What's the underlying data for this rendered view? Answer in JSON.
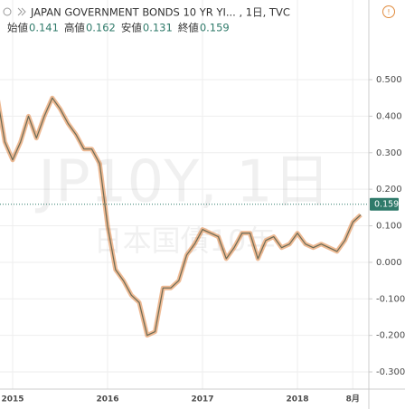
{
  "chart_data": {
    "type": "line",
    "title": "JAPAN GOVERNMENT BONDS 10 YR YI... , 1日, TVC",
    "watermark": "JP10Y, 1日",
    "watermark_subtitle": "日本国債10年",
    "ohlc": [
      {
        "label": "始値",
        "value": 0.141
      },
      {
        "label": "高値",
        "value": 0.162
      },
      {
        "label": "安値",
        "value": 0.131
      },
      {
        "label": "終値",
        "value": 0.159
      }
    ],
    "last_price": 0.159,
    "categories": [
      null,
      null,
      "2015",
      null,
      null,
      null,
      null,
      null,
      null,
      null,
      null,
      null,
      null,
      null,
      "2016",
      null,
      null,
      null,
      null,
      null,
      null,
      null,
      null,
      null,
      null,
      null,
      "2017",
      null,
      null,
      null,
      null,
      null,
      null,
      null,
      null,
      null,
      null,
      null,
      "2018",
      null,
      null,
      null,
      null,
      null,
      null,
      "8月",
      null
    ],
    "series": [
      {
        "name": "JP10Y",
        "color": "#e0823c",
        "values": [
          0.46,
          0.33,
          0.28,
          0.33,
          0.4,
          0.34,
          0.4,
          0.45,
          0.42,
          0.38,
          0.35,
          0.31,
          0.31,
          0.27,
          0.1,
          -0.02,
          -0.05,
          -0.09,
          -0.11,
          -0.2,
          -0.19,
          -0.07,
          -0.07,
          -0.05,
          0.02,
          0.05,
          0.09,
          0.08,
          0.07,
          0.01,
          0.04,
          0.08,
          0.08,
          0.01,
          0.06,
          0.07,
          0.04,
          0.05,
          0.08,
          0.05,
          0.04,
          0.05,
          0.04,
          0.03,
          0.06,
          0.11,
          0.13
        ]
      }
    ],
    "ylim": [
      -0.347,
      0.718
    ],
    "yticks": [
      {
        "value": -0.3,
        "label": "-0.300"
      },
      {
        "value": -0.2,
        "label": "-0.200"
      },
      {
        "value": -0.1,
        "label": "-0.100"
      },
      {
        "value": 0,
        "label": "0.000"
      },
      {
        "value": 0.1,
        "label": "0.100"
      },
      {
        "value": 0.2,
        "label": "0.200"
      },
      {
        "value": 0.3,
        "label": "0.300"
      },
      {
        "value": 0.4,
        "label": "0.400"
      },
      {
        "value": 0.5,
        "label": "0.500"
      }
    ],
    "grid": true
  }
}
